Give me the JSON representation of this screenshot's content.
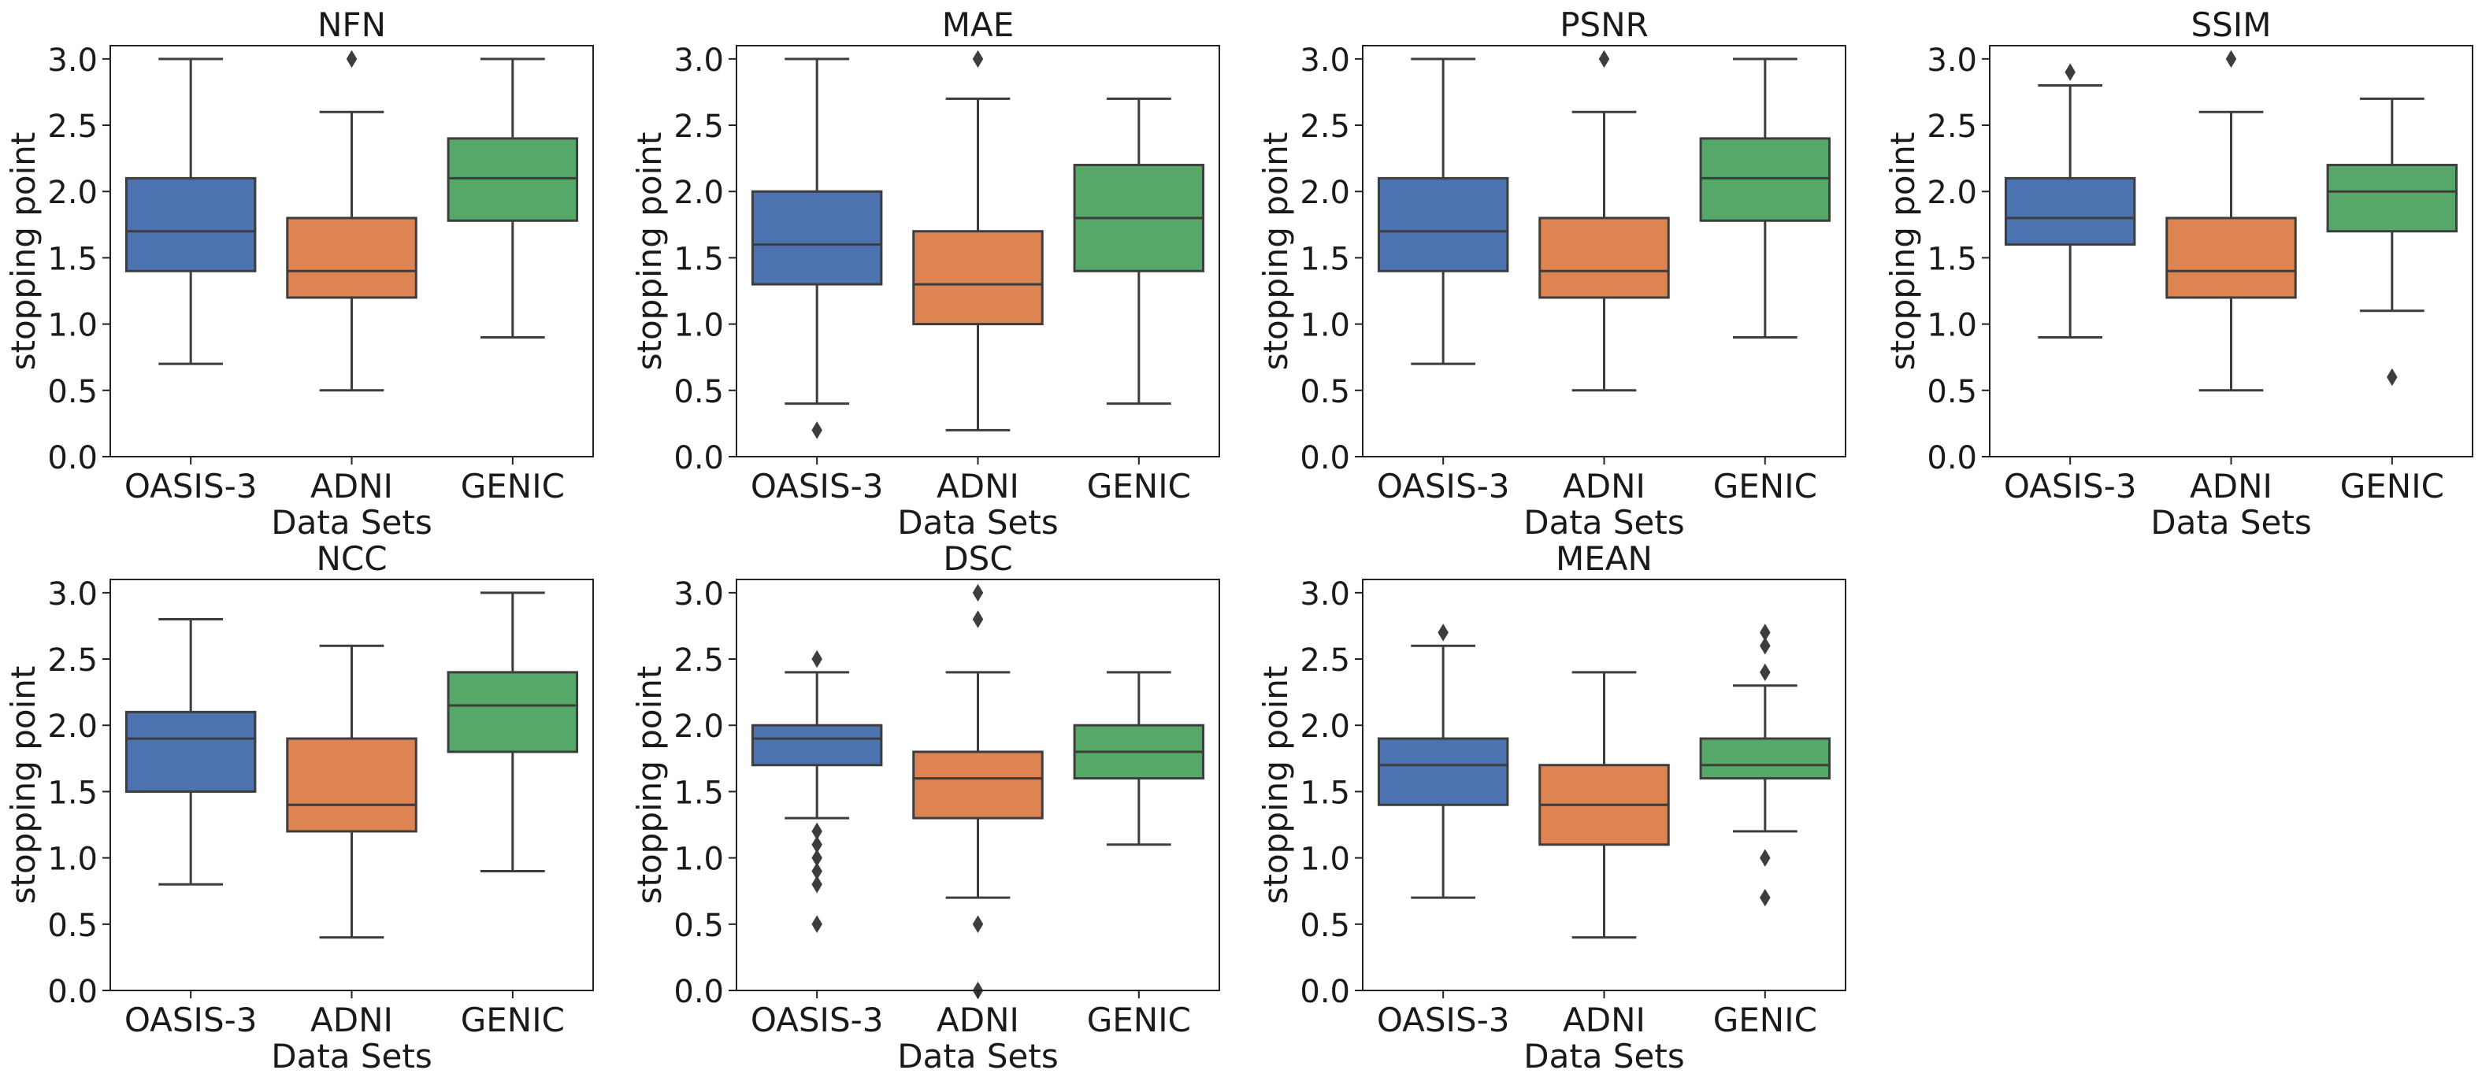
{
  "chart_data": [
    {
      "type": "box",
      "title": "NFN",
      "xlabel": "Data Sets",
      "ylabel": "stopping point",
      "ylim": [
        0,
        3.1
      ],
      "yticks": [
        "0.0",
        "0.5",
        "1.0",
        "1.5",
        "2.0",
        "2.5",
        "3.0"
      ],
      "categories": [
        "OASIS-3",
        "ADNI",
        "GENIC"
      ],
      "colors": [
        "#4c72b0",
        "#dd8452",
        "#55a868"
      ],
      "boxes": [
        {
          "whisker_low": 0.7,
          "q1": 1.4,
          "median": 1.7,
          "q3": 2.1,
          "whisker_high": 3.0,
          "outliers": []
        },
        {
          "whisker_low": 0.5,
          "q1": 1.2,
          "median": 1.4,
          "q3": 1.8,
          "whisker_high": 2.6,
          "outliers": [
            3.0
          ]
        },
        {
          "whisker_low": 0.9,
          "q1": 1.78,
          "median": 2.1,
          "q3": 2.4,
          "whisker_high": 3.0,
          "outliers": []
        }
      ]
    },
    {
      "type": "box",
      "title": "MAE",
      "xlabel": "Data Sets",
      "ylabel": "stopping point",
      "ylim": [
        0,
        3.1
      ],
      "yticks": [
        "0.0",
        "0.5",
        "1.0",
        "1.5",
        "2.0",
        "2.5",
        "3.0"
      ],
      "categories": [
        "OASIS-3",
        "ADNI",
        "GENIC"
      ],
      "colors": [
        "#4c72b0",
        "#dd8452",
        "#55a868"
      ],
      "boxes": [
        {
          "whisker_low": 0.4,
          "q1": 1.3,
          "median": 1.6,
          "q3": 2.0,
          "whisker_high": 3.0,
          "outliers": [
            0.2
          ]
        },
        {
          "whisker_low": 0.2,
          "q1": 1.0,
          "median": 1.3,
          "q3": 1.7,
          "whisker_high": 2.7,
          "outliers": [
            3.0
          ]
        },
        {
          "whisker_low": 0.4,
          "q1": 1.4,
          "median": 1.8,
          "q3": 2.2,
          "whisker_high": 2.7,
          "outliers": []
        }
      ]
    },
    {
      "type": "box",
      "title": "PSNR",
      "xlabel": "Data Sets",
      "ylabel": "stopping point",
      "ylim": [
        0,
        3.1
      ],
      "yticks": [
        "0.0",
        "0.5",
        "1.0",
        "1.5",
        "2.0",
        "2.5",
        "3.0"
      ],
      "categories": [
        "OASIS-3",
        "ADNI",
        "GENIC"
      ],
      "colors": [
        "#4c72b0",
        "#dd8452",
        "#55a868"
      ],
      "boxes": [
        {
          "whisker_low": 0.7,
          "q1": 1.4,
          "median": 1.7,
          "q3": 2.1,
          "whisker_high": 3.0,
          "outliers": []
        },
        {
          "whisker_low": 0.5,
          "q1": 1.2,
          "median": 1.4,
          "q3": 1.8,
          "whisker_high": 2.6,
          "outliers": [
            3.0
          ]
        },
        {
          "whisker_low": 0.9,
          "q1": 1.78,
          "median": 2.1,
          "q3": 2.4,
          "whisker_high": 3.0,
          "outliers": []
        }
      ]
    },
    {
      "type": "box",
      "title": "SSIM",
      "xlabel": "Data Sets",
      "ylabel": "stopping point",
      "ylim": [
        0,
        3.1
      ],
      "yticks": [
        "0.0",
        "0.5",
        "1.0",
        "1.5",
        "2.0",
        "2.5",
        "3.0"
      ],
      "categories": [
        "OASIS-3",
        "ADNI",
        "GENIC"
      ],
      "colors": [
        "#4c72b0",
        "#dd8452",
        "#55a868"
      ],
      "boxes": [
        {
          "whisker_low": 0.9,
          "q1": 1.6,
          "median": 1.8,
          "q3": 2.1,
          "whisker_high": 2.8,
          "outliers": [
            2.9
          ]
        },
        {
          "whisker_low": 0.5,
          "q1": 1.2,
          "median": 1.4,
          "q3": 1.8,
          "whisker_high": 2.6,
          "outliers": [
            3.0
          ]
        },
        {
          "whisker_low": 1.1,
          "q1": 1.7,
          "median": 2.0,
          "q3": 2.2,
          "whisker_high": 2.7,
          "outliers": [
            0.6
          ]
        }
      ]
    },
    {
      "type": "box",
      "title": "NCC",
      "xlabel": "Data Sets",
      "ylabel": "stopping point",
      "ylim": [
        0,
        3.1
      ],
      "yticks": [
        "0.0",
        "0.5",
        "1.0",
        "1.5",
        "2.0",
        "2.5",
        "3.0"
      ],
      "categories": [
        "OASIS-3",
        "ADNI",
        "GENIC"
      ],
      "colors": [
        "#4c72b0",
        "#dd8452",
        "#55a868"
      ],
      "boxes": [
        {
          "whisker_low": 0.8,
          "q1": 1.5,
          "median": 1.9,
          "q3": 2.1,
          "whisker_high": 2.8,
          "outliers": []
        },
        {
          "whisker_low": 0.4,
          "q1": 1.2,
          "median": 1.4,
          "q3": 1.9,
          "whisker_high": 2.6,
          "outliers": []
        },
        {
          "whisker_low": 0.9,
          "q1": 1.8,
          "median": 2.15,
          "q3": 2.4,
          "whisker_high": 3.0,
          "outliers": []
        }
      ]
    },
    {
      "type": "box",
      "title": "DSC",
      "xlabel": "Data Sets",
      "ylabel": "stopping point",
      "ylim": [
        0,
        3.1
      ],
      "yticks": [
        "0.0",
        "0.5",
        "1.0",
        "1.5",
        "2.0",
        "2.5",
        "3.0"
      ],
      "categories": [
        "OASIS-3",
        "ADNI",
        "GENIC"
      ],
      "colors": [
        "#4c72b0",
        "#dd8452",
        "#55a868"
      ],
      "boxes": [
        {
          "whisker_low": 1.3,
          "q1": 1.7,
          "median": 1.9,
          "q3": 2.0,
          "whisker_high": 2.4,
          "outliers": [
            2.5,
            1.2,
            1.1,
            1.0,
            0.9,
            0.8,
            0.5
          ]
        },
        {
          "whisker_low": 0.7,
          "q1": 1.3,
          "median": 1.6,
          "q3": 1.8,
          "whisker_high": 2.4,
          "outliers": [
            3.0,
            2.8,
            0.5,
            0.0
          ]
        },
        {
          "whisker_low": 1.1,
          "q1": 1.6,
          "median": 1.8,
          "q3": 2.0,
          "whisker_high": 2.4,
          "outliers": []
        }
      ]
    },
    {
      "type": "box",
      "title": "MEAN",
      "xlabel": "Data Sets",
      "ylabel": "stopping point",
      "ylim": [
        0,
        3.1
      ],
      "yticks": [
        "0.0",
        "0.5",
        "1.0",
        "1.5",
        "2.0",
        "2.5",
        "3.0"
      ],
      "categories": [
        "OASIS-3",
        "ADNI",
        "GENIC"
      ],
      "colors": [
        "#4c72b0",
        "#dd8452",
        "#55a868"
      ],
      "boxes": [
        {
          "whisker_low": 0.7,
          "q1": 1.4,
          "median": 1.7,
          "q3": 1.9,
          "whisker_high": 2.6,
          "outliers": [
            2.7
          ]
        },
        {
          "whisker_low": 0.4,
          "q1": 1.1,
          "median": 1.4,
          "q3": 1.7,
          "whisker_high": 2.4,
          "outliers": []
        },
        {
          "whisker_low": 1.2,
          "q1": 1.6,
          "median": 1.7,
          "q3": 1.9,
          "whisker_high": 2.3,
          "outliers": [
            2.7,
            2.6,
            2.4,
            1.0,
            0.7
          ]
        }
      ]
    }
  ]
}
